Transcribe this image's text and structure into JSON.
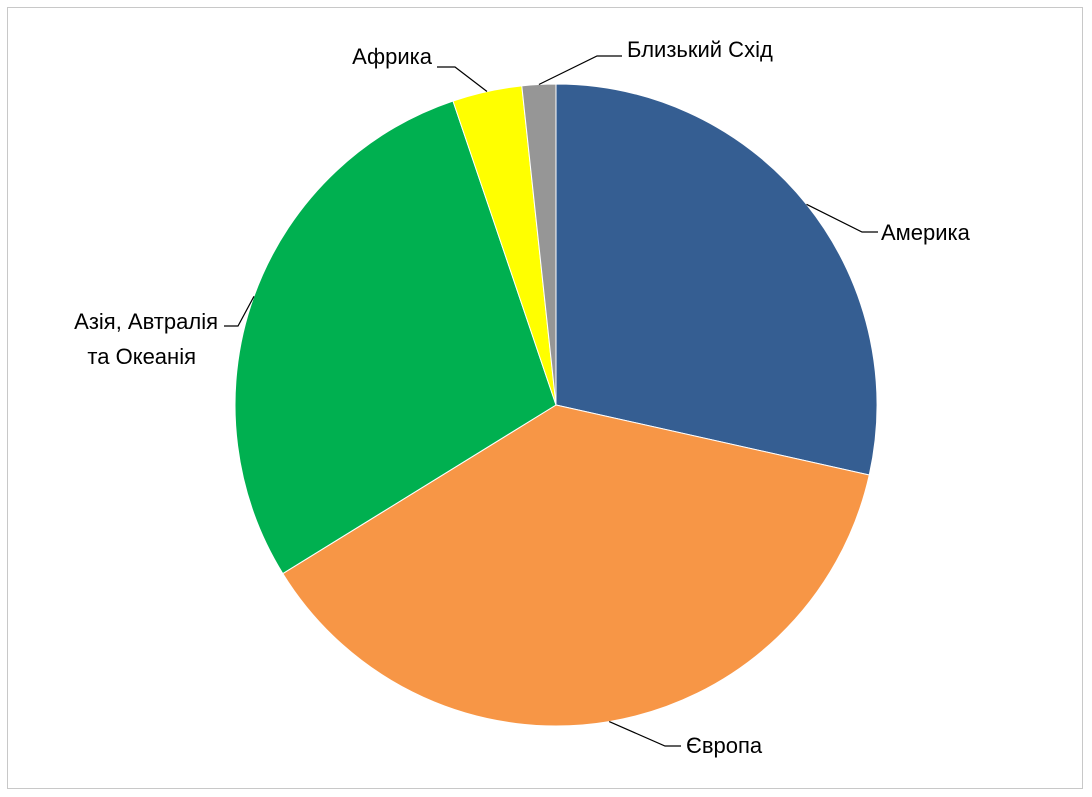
{
  "chart_data": {
    "type": "pie",
    "title": "",
    "start_angle_deg": 0,
    "direction": "clockwise",
    "slices": [
      {
        "label": "Америка",
        "value": 28.5,
        "color": "#355E92"
      },
      {
        "label": "Європа",
        "value": 37.7,
        "color": "#F79646"
      },
      {
        "label": "Азія, Автралія та Океанія",
        "value": 28.6,
        "color": "#00B050"
      },
      {
        "label": "Африка",
        "value": 3.5,
        "color": "#FFFF00"
      },
      {
        "label": "Близький Схід",
        "value": 1.7,
        "color": "#969696"
      }
    ],
    "legend": "none",
    "label_lines": [
      "Азія, Автралія",
      "та Океанія"
    ]
  }
}
